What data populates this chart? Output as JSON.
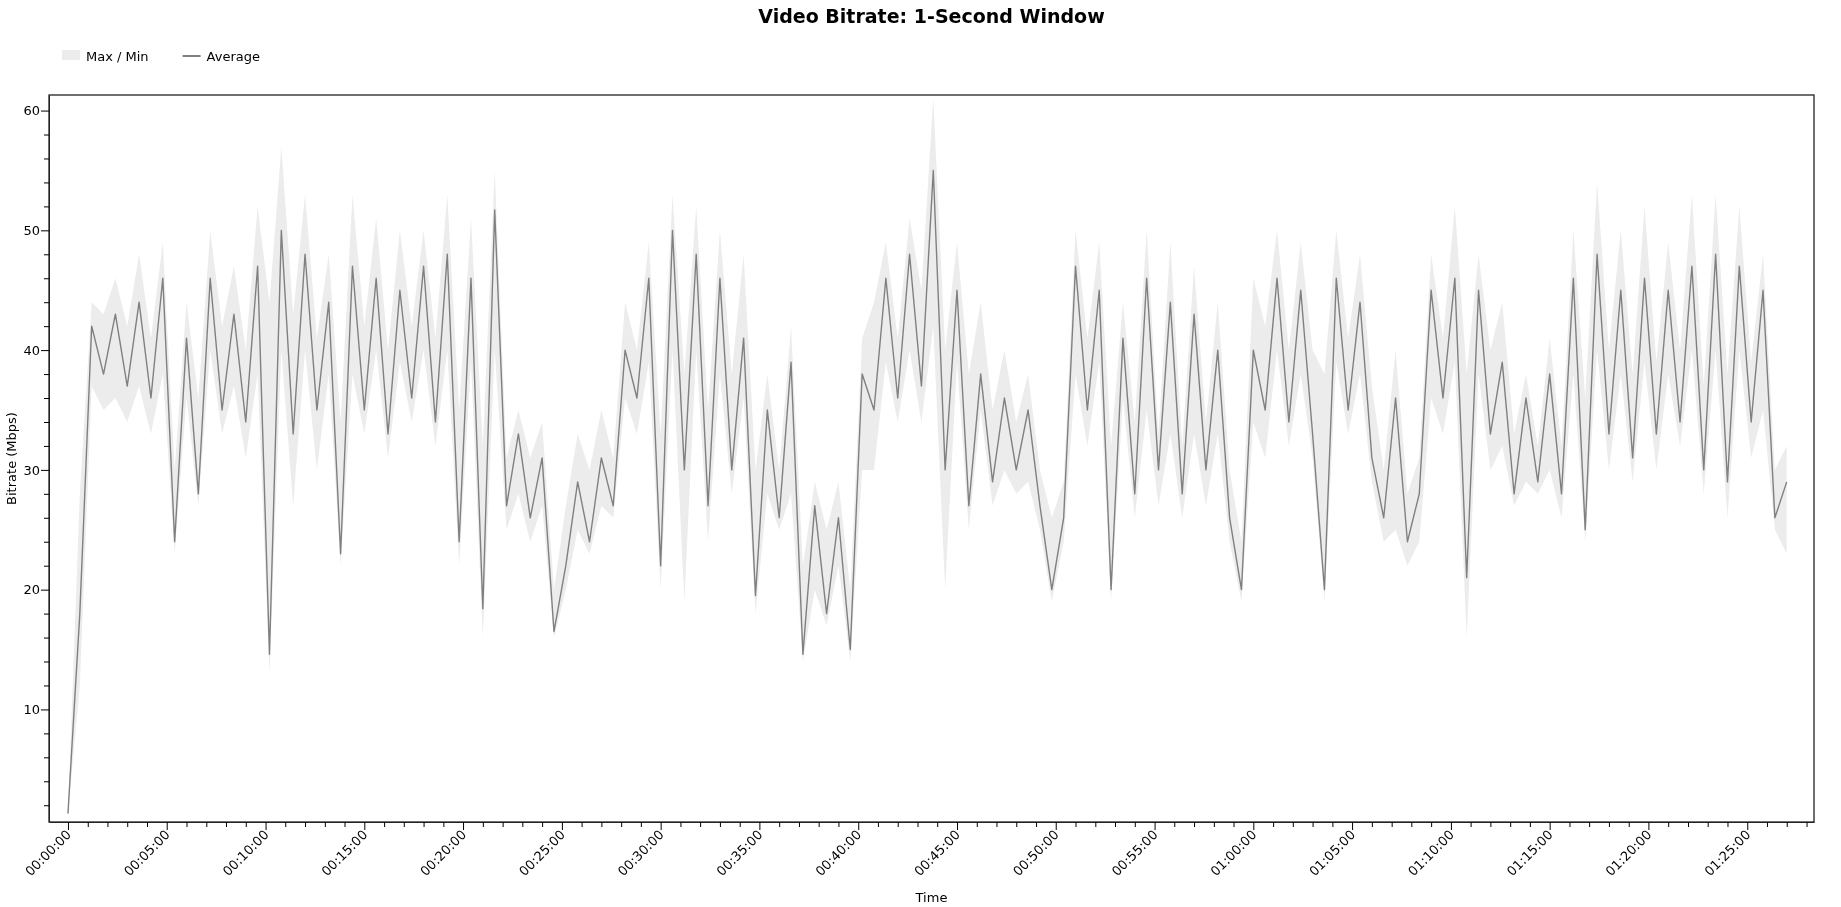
{
  "chart_data": {
    "type": "line",
    "title": "Video Bitrate: 1-Second Window",
    "xlabel": "Time",
    "ylabel": "Bitrate (Mbps)",
    "legend": "top left",
    "annotations": [
      "Max / Min"
    ],
    "x": [
      0,
      0.01,
      0.02,
      0.03,
      0.04,
      0.05,
      0.06,
      0.07,
      0.08,
      0.09,
      0.1,
      0.11,
      0.12,
      0.13,
      0.14,
      0.15,
      0.16,
      0.17,
      0.18,
      0.19,
      0.2,
      0.21,
      0.22,
      0.23,
      0.24,
      0.25,
      0.26,
      0.27,
      0.28,
      0.29,
      0.3,
      0.31,
      0.32,
      0.33,
      0.34,
      0.35,
      0.36,
      0.37,
      0.38,
      0.39,
      0.4,
      0.41,
      0.42,
      0.43,
      0.44,
      0.45,
      0.46,
      0.47,
      0.48,
      0.49,
      0.5,
      0.51,
      0.52,
      0.53,
      0.54,
      0.55,
      0.56,
      0.57,
      0.58,
      0.59,
      0.6,
      0.61,
      0.62,
      0.63,
      0.64,
      0.65,
      0.66,
      0.67,
      0.68,
      0.69,
      0.7,
      0.71,
      0.72,
      0.73,
      0.74,
      0.75,
      0.76,
      0.77,
      0.78,
      0.79,
      0.8,
      0.81,
      0.82,
      0.83,
      0.84,
      0.85,
      0.86,
      0.87,
      0.88,
      0.89,
      0.9,
      0.91,
      0.92,
      0.93,
      0.94,
      0.95,
      0.96,
      0.97,
      0.98,
      0.99,
      1,
      1.01,
      1.02,
      1.03,
      1.04,
      1.05,
      1.06,
      1.07,
      1.08,
      1.09,
      1.1,
      1.11,
      1.12,
      1.13,
      1.14,
      1.15,
      1.16,
      1.17,
      1.18,
      1.19,
      1.2,
      1.21,
      1.22,
      1.23,
      1.24,
      1.25,
      1.26,
      1.27,
      1.28,
      1.29,
      1.3,
      1.31,
      1.32,
      1.33,
      1.34,
      1.35,
      1.36,
      1.37,
      1.38,
      1.39,
      1.4,
      1.41,
      1.42,
      1.43,
      1.44,
      1.45
    ],
    "series": [
      {
        "name": "Average",
        "color": "#808080",
        "lower": [
          1.3,
          12,
          37,
          35,
          36,
          34,
          37,
          33,
          38,
          23,
          36,
          27,
          40,
          33,
          37,
          31,
          38,
          13,
          40,
          27,
          40,
          30,
          38,
          22,
          38,
          33,
          40,
          31,
          39,
          34,
          40,
          32,
          40,
          22,
          39,
          16,
          40,
          25,
          28,
          24,
          27,
          16,
          20,
          25,
          23,
          27,
          26,
          36,
          33,
          39,
          20,
          40,
          19,
          40,
          24,
          38,
          28,
          36,
          18,
          28,
          25,
          28,
          14,
          20,
          17,
          22,
          14,
          30,
          30,
          39,
          34,
          40,
          34,
          42,
          20,
          39,
          25,
          35,
          27,
          30,
          28,
          29,
          25,
          19,
          24,
          38,
          32,
          39,
          19,
          36,
          26,
          35,
          27,
          33,
          26,
          33,
          27,
          33,
          24,
          19,
          34,
          31,
          40,
          32,
          38,
          31,
          19,
          39,
          33,
          38,
          29,
          24,
          25,
          22,
          24,
          36,
          33,
          39,
          16,
          38,
          30,
          32,
          27,
          29,
          28,
          30,
          26,
          38,
          24,
          40,
          30,
          38,
          29,
          39,
          30,
          38,
          32,
          40,
          28,
          40,
          26,
          40,
          31,
          35,
          25,
          23
        ],
        "upper": [
          1.3,
          28,
          44,
          43,
          46,
          42,
          48,
          41,
          49,
          30,
          44,
          36,
          50,
          42,
          47,
          40,
          52,
          44,
          57,
          43,
          53,
          41,
          48,
          34,
          53,
          42,
          51,
          40,
          50,
          42,
          50,
          41,
          53,
          35,
          51,
          32,
          55,
          31,
          35,
          31,
          34,
          20,
          27,
          33,
          30,
          35,
          31,
          44,
          40,
          49,
          33,
          53,
          38,
          52,
          35,
          50,
          38,
          48,
          30,
          38,
          30,
          42,
          22,
          29,
          25,
          29,
          20,
          41,
          44,
          49,
          41,
          51,
          45,
          61,
          40,
          49,
          38,
          44,
          35,
          40,
          34,
          38,
          30,
          26,
          29,
          50,
          41,
          49,
          32,
          44,
          34,
          50,
          33,
          49,
          32,
          47,
          34,
          44,
          30,
          24,
          46,
          42,
          50,
          40,
          49,
          40,
          38,
          50,
          41,
          48,
          37,
          30,
          40,
          28,
          31,
          48,
          41,
          52,
          38,
          48,
          40,
          44,
          33,
          38,
          32,
          41,
          32,
          50,
          36,
          54,
          40,
          50,
          38,
          52,
          39,
          49,
          40,
          53,
          37,
          53,
          38,
          52,
          39,
          48,
          30,
          32
        ],
        "line_style": "solid",
        "values": [
          1.3,
          18,
          42,
          38,
          43,
          37,
          44,
          36,
          46,
          24,
          41,
          28,
          46,
          35,
          43,
          34,
          47,
          14.6,
          50,
          33,
          48,
          35,
          44,
          23,
          47,
          35,
          46,
          33,
          45,
          36,
          47,
          34,
          48,
          24,
          46,
          18.4,
          51.7,
          27,
          33,
          26,
          31,
          16.5,
          22,
          29,
          24,
          31,
          27,
          40,
          36,
          46,
          22,
          50,
          30,
          48,
          27,
          46,
          30,
          41,
          19.5,
          35,
          26,
          39,
          14.6,
          27,
          18,
          26,
          15,
          38,
          35,
          46,
          36,
          48,
          37,
          55,
          30,
          45,
          27,
          38,
          29,
          36,
          30,
          35,
          27,
          20,
          26,
          47,
          35,
          45,
          20,
          41,
          28,
          46,
          30,
          44,
          28,
          43,
          30,
          40,
          26,
          20,
          40,
          35,
          46,
          34,
          45,
          33,
          20,
          46,
          35,
          44,
          31,
          26,
          36,
          24,
          28,
          45,
          36,
          46,
          21,
          45,
          33,
          39,
          28,
          36,
          29,
          38,
          28,
          46,
          25,
          48,
          33,
          45,
          31,
          46,
          33,
          45,
          34,
          47,
          30,
          48,
          29,
          47,
          34,
          45,
          26,
          29
        ]
      }
    ],
    "xlim": [
      -0.016,
      1.473
    ],
    "xticks": [
      {
        "value": 0,
        "label": "00:00:00"
      },
      {
        "value": 0.0167,
        "label": null
      },
      {
        "value": 0.0333,
        "label": null
      },
      {
        "value": 0.05,
        "label": null
      },
      {
        "value": 0.0667,
        "label": null
      },
      {
        "value": 0.0833,
        "label": "00:05:00"
      },
      {
        "value": 0.1,
        "label": null
      },
      {
        "value": 0.1167,
        "label": null
      },
      {
        "value": 0.1333,
        "label": null
      },
      {
        "value": 0.15,
        "label": null
      },
      {
        "value": 0.1667,
        "label": "00:10:00"
      },
      {
        "value": 0.1833,
        "label": null
      },
      {
        "value": 0.2,
        "label": null
      },
      {
        "value": 0.2167,
        "label": null
      },
      {
        "value": 0.2333,
        "label": null
      },
      {
        "value": 0.25,
        "label": "00:15:00"
      },
      {
        "value": 0.2667,
        "label": null
      },
      {
        "value": 0.2833,
        "label": null
      },
      {
        "value": 0.3,
        "label": null
      },
      {
        "value": 0.3167,
        "label": null
      },
      {
        "value": 0.3333,
        "label": "00:20:00"
      },
      {
        "value": 0.35,
        "label": null
      },
      {
        "value": 0.3667,
        "label": null
      },
      {
        "value": 0.3833,
        "label": null
      },
      {
        "value": 0.4,
        "label": null
      },
      {
        "value": 0.4167,
        "label": "00:25:00"
      },
      {
        "value": 0.4333,
        "label": null
      },
      {
        "value": 0.45,
        "label": null
      },
      {
        "value": 0.4667,
        "label": null
      },
      {
        "value": 0.4833,
        "label": null
      },
      {
        "value": 0.5,
        "label": "00:30:00"
      },
      {
        "value": 0.5167,
        "label": null
      },
      {
        "value": 0.5333,
        "label": null
      },
      {
        "value": 0.55,
        "label": null
      },
      {
        "value": 0.5667,
        "label": null
      },
      {
        "value": 0.5833,
        "label": "00:35:00"
      },
      {
        "value": 0.6,
        "label": null
      },
      {
        "value": 0.6167,
        "label": null
      },
      {
        "value": 0.6333,
        "label": null
      },
      {
        "value": 0.65,
        "label": null
      },
      {
        "value": 0.6667,
        "label": "00:40:00"
      },
      {
        "value": 0.6833,
        "label": null
      },
      {
        "value": 0.7,
        "label": null
      },
      {
        "value": 0.7167,
        "label": null
      },
      {
        "value": 0.7333,
        "label": null
      },
      {
        "value": 0.75,
        "label": "00:45:00"
      },
      {
        "value": 0.7667,
        "label": null
      },
      {
        "value": 0.7833,
        "label": null
      },
      {
        "value": 0.8,
        "label": null
      },
      {
        "value": 0.8167,
        "label": null
      },
      {
        "value": 0.8333,
        "label": "00:50:00"
      },
      {
        "value": 0.85,
        "label": null
      },
      {
        "value": 0.8667,
        "label": null
      },
      {
        "value": 0.8833,
        "label": null
      },
      {
        "value": 0.9,
        "label": null
      },
      {
        "value": 0.9167,
        "label": "00:55:00"
      },
      {
        "value": 0.9333,
        "label": null
      },
      {
        "value": 0.95,
        "label": null
      },
      {
        "value": 0.9667,
        "label": null
      },
      {
        "value": 0.9833,
        "label": null
      },
      {
        "value": 1,
        "label": "01:00:00"
      },
      {
        "value": 1.0167,
        "label": null
      },
      {
        "value": 1.0333,
        "label": null
      },
      {
        "value": 1.05,
        "label": null
      },
      {
        "value": 1.0667,
        "label": null
      },
      {
        "value": 1.0833,
        "label": "01:05:00"
      },
      {
        "value": 1.1,
        "label": null
      },
      {
        "value": 1.1167,
        "label": null
      },
      {
        "value": 1.1333,
        "label": null
      },
      {
        "value": 1.15,
        "label": null
      },
      {
        "value": 1.1667,
        "label": "01:10:00"
      },
      {
        "value": 1.1833,
        "label": null
      },
      {
        "value": 1.2,
        "label": null
      },
      {
        "value": 1.2167,
        "label": null
      },
      {
        "value": 1.2333,
        "label": null
      },
      {
        "value": 1.25,
        "label": "01:15:00"
      },
      {
        "value": 1.2667,
        "label": null
      },
      {
        "value": 1.2833,
        "label": null
      },
      {
        "value": 1.3,
        "label": null
      },
      {
        "value": 1.3167,
        "label": null
      },
      {
        "value": 1.3333,
        "label": "01:20:00"
      },
      {
        "value": 1.35,
        "label": null
      },
      {
        "value": 1.3667,
        "label": null
      },
      {
        "value": 1.3833,
        "label": null
      },
      {
        "value": 1.4,
        "label": null
      },
      {
        "value": 1.4167,
        "label": "01:25:00"
      },
      {
        "value": 1.4333,
        "label": null
      },
      {
        "value": 1.45,
        "label": null
      },
      {
        "value": 1.4667,
        "label": null
      }
    ],
    "ylim": [
      0.6,
      61.3
    ],
    "yticks": [
      {
        "value": 2,
        "label": null
      },
      {
        "value": 4,
        "label": null
      },
      {
        "value": 6,
        "label": null
      },
      {
        "value": 8,
        "label": null
      },
      10,
      {
        "value": 12,
        "label": null
      },
      {
        "value": 14,
        "label": null
      },
      {
        "value": 16,
        "label": null
      },
      {
        "value": 18,
        "label": null
      },
      20,
      {
        "value": 22,
        "label": null
      },
      {
        "value": 24,
        "label": null
      },
      {
        "value": 26,
        "label": null
      },
      {
        "value": 28,
        "label": null
      },
      30,
      {
        "value": 32,
        "label": null
      },
      {
        "value": 34,
        "label": null
      },
      {
        "value": 36,
        "label": null
      },
      {
        "value": 38,
        "label": null
      },
      40,
      {
        "value": 42,
        "label": null
      },
      {
        "value": 44,
        "label": null
      },
      {
        "value": 46,
        "label": null
      },
      {
        "value": 48,
        "label": null
      },
      50,
      {
        "value": 52,
        "label": null
      },
      {
        "value": 54,
        "label": null
      },
      {
        "value": 56,
        "label": null
      },
      {
        "value": 58,
        "label": null
      },
      60
    ]
  }
}
